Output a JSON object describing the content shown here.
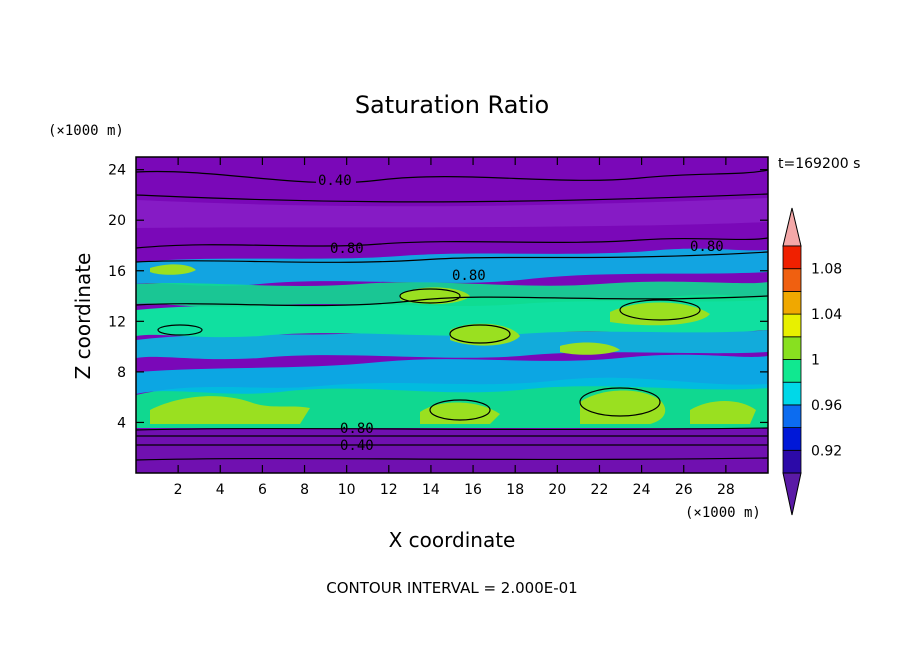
{
  "chart_data": {
    "type": "heatmap",
    "title": "Saturation Ratio",
    "xlabel": "X coordinate",
    "ylabel": "Z coordinate",
    "x_unit": "(×1000 m)",
    "y_unit": "(×1000 m)",
    "xlim": [
      0,
      30
    ],
    "ylim": [
      0,
      25
    ],
    "x_ticks": [
      "2",
      "4",
      "6",
      "8",
      "10",
      "12",
      "14",
      "16",
      "18",
      "20",
      "22",
      "24",
      "26",
      "28"
    ],
    "y_ticks": [
      "4",
      "8",
      "12",
      "16",
      "20",
      "24"
    ],
    "time_label": "t=169200 s",
    "footer": "CONTOUR INTERVAL = 2.000E-01",
    "colorbar_ticks": [
      "0.92",
      "0.96",
      "1",
      "1.04",
      "1.08"
    ],
    "colorbar_colors": [
      "#5a1aa6",
      "#2c0aa8",
      "#0018d8",
      "#0c6cf0",
      "#00d8e8",
      "#10e890",
      "#88e020",
      "#e8f000",
      "#f0a800",
      "#f06010",
      "#f02000",
      "#f4a8a8"
    ],
    "contour_labels": [
      "0.40",
      "0.80",
      "0.80",
      "0.80",
      "0.80",
      "0.40"
    ],
    "contour_levels": [
      0.4,
      0.8
    ],
    "bands": [
      {
        "z_from": 0,
        "z_to": 3.5,
        "level": 0
      },
      {
        "z_from": 3.5,
        "z_to": 7.5,
        "level": 4
      },
      {
        "z_from": 7.5,
        "z_to": 10.5,
        "level": 3
      },
      {
        "z_from": 10.5,
        "z_to": 14.5,
        "level": 4
      },
      {
        "z_from": 14.5,
        "z_to": 17,
        "level": 3
      },
      {
        "z_from": 17,
        "z_to": 25,
        "level": 0
      }
    ]
  }
}
